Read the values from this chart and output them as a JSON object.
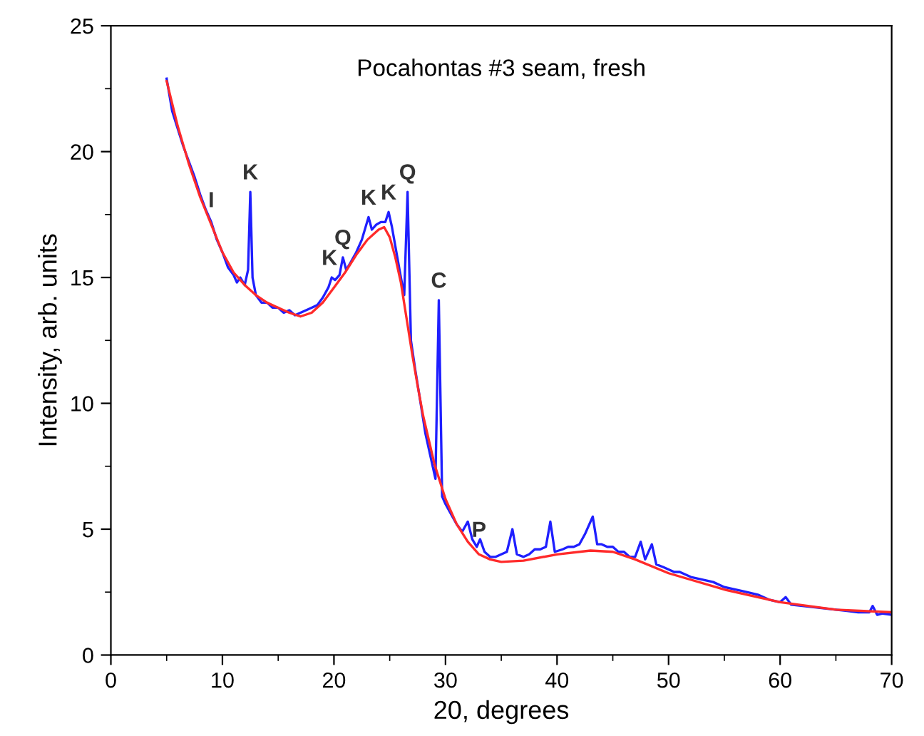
{
  "chart_data": {
    "type": "line",
    "title": "Pocahontas #3 seam, fresh",
    "xlabel": "20, degrees",
    "ylabel": "Intensity, arb. units",
    "xlim": [
      0,
      70
    ],
    "ylim": [
      0,
      25
    ],
    "xticks": [
      0,
      10,
      20,
      30,
      40,
      50,
      60,
      70
    ],
    "yticks": [
      0,
      5,
      10,
      15,
      20,
      25
    ],
    "grid": false,
    "marker": "none",
    "line_style": "solid",
    "series": [
      {
        "color": "#1f1fff",
        "x": [
          5,
          5.5,
          6,
          6.5,
          7,
          7.5,
          8,
          8.5,
          9,
          9.5,
          10,
          10.5,
          11,
          11.3,
          11.6,
          12,
          12.3,
          12.5,
          12.7,
          13,
          13.5,
          14,
          14.5,
          15,
          15.5,
          16,
          16.5,
          17,
          17.5,
          18,
          18.5,
          19,
          19.5,
          19.8,
          20.1,
          20.5,
          20.8,
          21.1,
          21.5,
          22,
          22.5,
          23.1,
          23.4,
          23.8,
          24.2,
          24.6,
          24.9,
          25.2,
          25.6,
          26,
          26.3,
          26.6,
          26.9,
          27.3,
          27.7,
          28.2,
          28.7,
          29.1,
          29.4,
          29.7,
          30,
          30.5,
          31,
          31.5,
          32,
          32.4,
          32.8,
          33.1,
          33.5,
          34,
          34.5,
          35,
          35.5,
          36,
          36.4,
          37,
          37.5,
          38,
          38.5,
          39,
          39.4,
          39.8,
          40.5,
          41,
          41.5,
          42,
          42.5,
          43.2,
          43.6,
          44,
          44.5,
          45,
          45.5,
          46,
          46.5,
          47,
          47.5,
          47.9,
          48.5,
          48.9,
          49.5,
          50,
          50.5,
          51,
          52,
          53,
          54,
          55,
          56,
          57,
          58,
          59,
          60,
          60.5,
          61,
          62,
          63,
          64,
          65,
          66,
          67,
          68,
          68.3,
          68.7,
          69.2,
          70
        ],
        "values": [
          22.9,
          21.6,
          20.9,
          20.2,
          19.6,
          19.0,
          18.3,
          17.7,
          17.2,
          16.5,
          16.0,
          15.4,
          15.1,
          14.8,
          15.0,
          14.7,
          15.3,
          18.4,
          15.0,
          14.3,
          14.0,
          14.0,
          13.8,
          13.8,
          13.6,
          13.7,
          13.5,
          13.6,
          13.7,
          13.8,
          13.9,
          14.2,
          14.6,
          15.0,
          14.9,
          15.1,
          15.8,
          15.3,
          15.6,
          16.0,
          16.5,
          17.4,
          16.9,
          17.1,
          17.2,
          17.2,
          17.6,
          17.0,
          16.0,
          15.0,
          14.3,
          18.4,
          12.5,
          11.3,
          10.2,
          8.8,
          7.8,
          7.0,
          14.1,
          6.3,
          6.0,
          5.6,
          5.2,
          4.9,
          5.3,
          4.6,
          4.3,
          4.6,
          4.1,
          3.9,
          3.9,
          4.0,
          4.1,
          5.0,
          4.0,
          3.9,
          4.0,
          4.2,
          4.2,
          4.3,
          5.3,
          4.1,
          4.2,
          4.3,
          4.3,
          4.4,
          4.8,
          5.5,
          4.4,
          4.4,
          4.3,
          4.3,
          4.1,
          4.1,
          3.9,
          3.9,
          4.5,
          3.8,
          4.4,
          3.6,
          3.5,
          3.4,
          3.3,
          3.3,
          3.1,
          3.0,
          2.9,
          2.7,
          2.6,
          2.5,
          2.4,
          2.2,
          2.1,
          2.3,
          2.0,
          1.95,
          1.9,
          1.85,
          1.8,
          1.75,
          1.7,
          1.7,
          1.95,
          1.6,
          1.65,
          1.6
        ]
      },
      {
        "color": "#ff2a2a",
        "x": [
          5,
          6,
          7,
          8,
          9,
          10,
          11,
          12,
          13,
          14,
          15,
          16,
          17,
          18,
          19,
          20,
          21,
          22,
          23,
          24,
          24.5,
          25,
          25.5,
          26,
          26.5,
          27,
          27.5,
          28,
          29,
          30,
          31,
          32,
          33,
          34,
          35,
          37,
          40,
          43,
          45,
          47,
          50,
          55,
          60,
          65,
          70
        ],
        "values": [
          22.8,
          21.0,
          19.5,
          18.2,
          17.1,
          16.0,
          15.2,
          14.7,
          14.3,
          14.0,
          13.8,
          13.6,
          13.45,
          13.6,
          14.0,
          14.6,
          15.2,
          15.9,
          16.5,
          16.9,
          17.0,
          16.6,
          15.8,
          14.8,
          13.4,
          12.0,
          10.7,
          9.5,
          7.6,
          6.2,
          5.2,
          4.5,
          4.0,
          3.8,
          3.7,
          3.75,
          4.0,
          4.15,
          4.1,
          3.8,
          3.25,
          2.6,
          2.1,
          1.8,
          1.7
        ]
      }
    ],
    "annotations": [
      {
        "text": "I",
        "x": 9,
        "y": 17.3
      },
      {
        "text": "K",
        "x": 12.5,
        "y": 18.4
      },
      {
        "text": "K",
        "x": 19.6,
        "y": 15.0
      },
      {
        "text": "Q",
        "x": 20.8,
        "y": 15.8
      },
      {
        "text": "K",
        "x": 23.1,
        "y": 17.4
      },
      {
        "text": "K",
        "x": 24.9,
        "y": 17.6
      },
      {
        "text": "Q",
        "x": 26.6,
        "y": 18.4
      },
      {
        "text": "C",
        "x": 29.4,
        "y": 14.1
      },
      {
        "text": "P",
        "x": 33,
        "y": 4.2
      }
    ]
  }
}
